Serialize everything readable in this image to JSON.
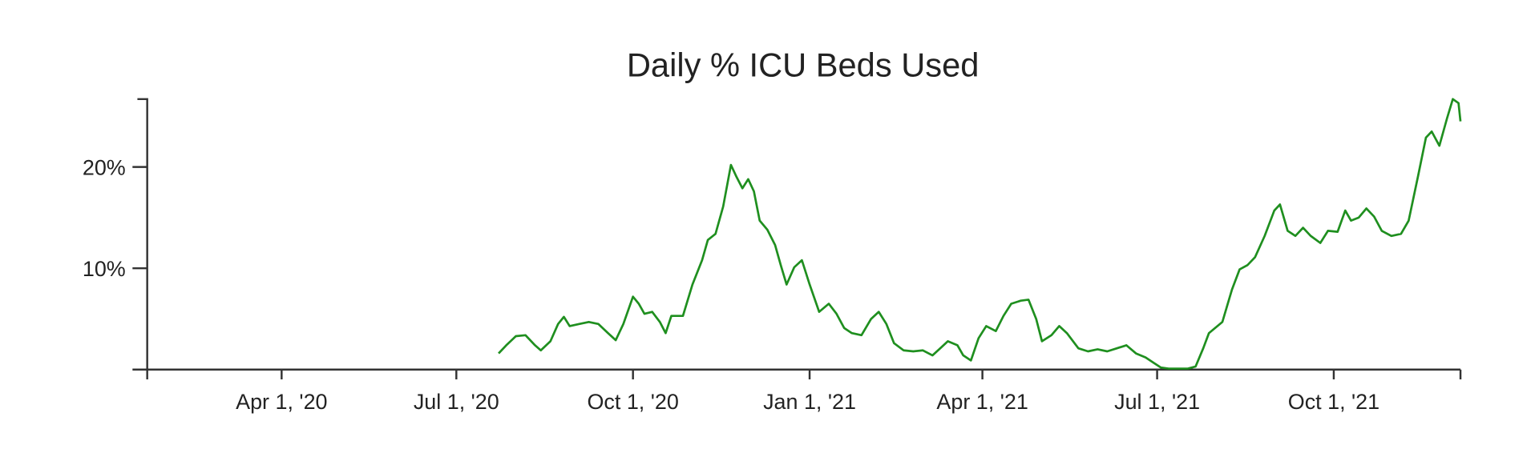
{
  "chart_data": {
    "type": "line",
    "title": "Daily % ICU Beds Used",
    "xlim": [
      "2020-01-22",
      "2021-12-06"
    ],
    "xticks": [
      {
        "value": "2020-04-01",
        "label": "Apr 1, '20"
      },
      {
        "value": "2020-07-01",
        "label": "Jul 1, '20"
      },
      {
        "value": "2020-10-01",
        "label": "Oct 1, '20"
      },
      {
        "value": "2021-01-01",
        "label": "Jan 1, '21"
      },
      {
        "value": "2021-04-01",
        "label": "Apr 1, '21"
      },
      {
        "value": "2021-07-01",
        "label": "Jul 1, '21"
      },
      {
        "value": "2021-10-01",
        "label": "Oct 1, '21"
      }
    ],
    "ylim": [
      0,
      26.7
    ],
    "yticks": [
      {
        "value": 20,
        "label": "20%"
      },
      {
        "value": 10,
        "label": "10%"
      }
    ],
    "x": [
      "2020-07-23",
      "2020-07-27",
      "2020-08-01",
      "2020-08-06",
      "2020-08-11",
      "2020-08-14",
      "2020-08-19",
      "2020-08-23",
      "2020-08-26",
      "2020-08-29",
      "2020-09-03",
      "2020-09-08",
      "2020-09-13",
      "2020-09-18",
      "2020-09-22",
      "2020-09-26",
      "2020-10-01",
      "2020-10-04",
      "2020-10-07",
      "2020-10-11",
      "2020-10-15",
      "2020-10-18",
      "2020-10-21",
      "2020-10-27",
      "2020-11-01",
      "2020-11-06",
      "2020-11-09",
      "2020-11-13",
      "2020-11-17",
      "2020-11-21",
      "2020-11-24",
      "2020-11-27",
      "2020-11-30",
      "2020-12-03",
      "2020-12-06",
      "2020-12-10",
      "2020-12-14",
      "2020-12-17",
      "2020-12-20",
      "2020-12-24",
      "2020-12-28",
      "2021-01-01",
      "2021-01-06",
      "2021-01-11",
      "2021-01-15",
      "2021-01-19",
      "2021-01-23",
      "2021-01-28",
      "2021-02-02",
      "2021-02-06",
      "2021-02-10",
      "2021-02-14",
      "2021-02-19",
      "2021-02-24",
      "2021-03-01",
      "2021-03-06",
      "2021-03-10",
      "2021-03-14",
      "2021-03-19",
      "2021-03-22",
      "2021-03-26",
      "2021-03-30",
      "2021-04-03",
      "2021-04-08",
      "2021-04-12",
      "2021-04-16",
      "2021-04-21",
      "2021-04-25",
      "2021-04-29",
      "2021-05-02",
      "2021-05-07",
      "2021-05-11",
      "2021-05-15",
      "2021-05-21",
      "2021-05-26",
      "2021-05-31",
      "2021-06-05",
      "2021-06-10",
      "2021-06-15",
      "2021-06-20",
      "2021-06-25",
      "2021-06-29",
      "2021-07-03",
      "2021-07-07",
      "2021-07-12",
      "2021-07-17",
      "2021-07-21",
      "2021-07-25",
      "2021-07-28",
      "2021-08-04",
      "2021-08-09",
      "2021-08-13",
      "2021-08-17",
      "2021-08-21",
      "2021-08-26",
      "2021-08-31",
      "2021-09-03",
      "2021-09-07",
      "2021-09-11",
      "2021-09-15",
      "2021-09-19",
      "2021-09-24",
      "2021-09-28",
      "2021-10-03",
      "2021-10-07",
      "2021-10-10",
      "2021-10-14",
      "2021-10-18",
      "2021-10-22",
      "2021-10-26",
      "2021-10-31",
      "2021-11-05",
      "2021-11-09",
      "2021-11-14",
      "2021-11-18",
      "2021-11-21",
      "2021-11-25",
      "2021-11-29",
      "2021-12-02",
      "2021-12-05",
      "2021-12-06"
    ],
    "series": [
      {
        "name": "% ICU Beds Used",
        "color": "#1f8f1f",
        "values": [
          1.6,
          2.4,
          3.3,
          3.4,
          2.4,
          1.9,
          2.8,
          4.5,
          5.2,
          4.3,
          4.5,
          4.7,
          4.5,
          3.6,
          2.9,
          4.5,
          7.2,
          6.5,
          5.5,
          5.7,
          4.7,
          3.6,
          5.3,
          5.3,
          8.4,
          10.8,
          12.8,
          13.4,
          16.1,
          20.2,
          19.0,
          17.9,
          18.8,
          17.6,
          14.7,
          13.8,
          12.3,
          10.3,
          8.4,
          10.1,
          10.8,
          8.4,
          5.7,
          6.5,
          5.5,
          4.1,
          3.6,
          3.4,
          5.0,
          5.7,
          4.5,
          2.6,
          1.9,
          1.8,
          1.9,
          1.4,
          2.1,
          2.8,
          2.4,
          1.4,
          0.9,
          3.1,
          4.3,
          3.8,
          5.3,
          6.5,
          6.8,
          6.9,
          5.0,
          2.8,
          3.4,
          4.3,
          3.6,
          2.1,
          1.8,
          2.0,
          1.8,
          2.1,
          2.4,
          1.6,
          1.2,
          0.7,
          0.2,
          0.1,
          0.1,
          0.1,
          0.3,
          2.1,
          3.6,
          4.7,
          7.9,
          9.9,
          10.3,
          11.1,
          13.2,
          15.7,
          16.3,
          13.7,
          13.2,
          14.0,
          13.2,
          12.5,
          13.7,
          13.6,
          15.7,
          14.7,
          15.0,
          15.9,
          15.1,
          13.7,
          13.2,
          13.4,
          14.7,
          19.2,
          22.9,
          23.5,
          22.1,
          24.8,
          26.7,
          26.3,
          24.5
        ]
      }
    ]
  }
}
